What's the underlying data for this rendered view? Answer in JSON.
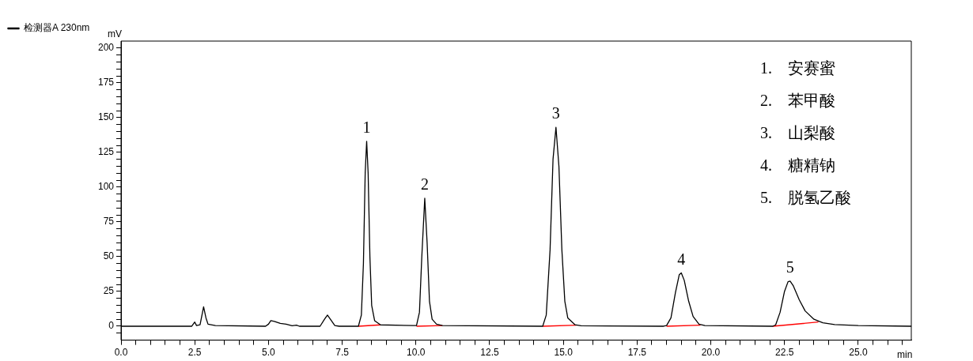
{
  "chart_data": {
    "type": "line",
    "xlabel": "min",
    "ylabel": "mV",
    "legend": "top left",
    "grid": false,
    "marker": "none",
    "line_style": "solid",
    "xlim": [
      0,
      26.8
    ],
    "ylim": [
      -10,
      205
    ],
    "xticks": [
      {
        "value": 0,
        "label": "0.0"
      },
      {
        "value": 0.5,
        "label": null
      },
      {
        "value": 1,
        "label": null
      },
      {
        "value": 1.5,
        "label": null
      },
      {
        "value": 2,
        "label": null
      },
      {
        "value": 2.5,
        "label": "2.5"
      },
      {
        "value": 3,
        "label": null
      },
      {
        "value": 3.5,
        "label": null
      },
      {
        "value": 4,
        "label": null
      },
      {
        "value": 4.5,
        "label": null
      },
      {
        "value": 5,
        "label": "5.0"
      },
      {
        "value": 5.5,
        "label": null
      },
      {
        "value": 6,
        "label": null
      },
      {
        "value": 6.5,
        "label": null
      },
      {
        "value": 7,
        "label": null
      },
      {
        "value": 7.5,
        "label": "7.5"
      },
      {
        "value": 8,
        "label": null
      },
      {
        "value": 8.5,
        "label": null
      },
      {
        "value": 9,
        "label": null
      },
      {
        "value": 9.5,
        "label": null
      },
      {
        "value": 10,
        "label": "10.0"
      },
      {
        "value": 10.5,
        "label": null
      },
      {
        "value": 11,
        "label": null
      },
      {
        "value": 11.5,
        "label": null
      },
      {
        "value": 12,
        "label": null
      },
      {
        "value": 12.5,
        "label": "12.5"
      },
      {
        "value": 13,
        "label": null
      },
      {
        "value": 13.5,
        "label": null
      },
      {
        "value": 14,
        "label": null
      },
      {
        "value": 14.5,
        "label": null
      },
      {
        "value": 15,
        "label": "15.0"
      },
      {
        "value": 15.5,
        "label": null
      },
      {
        "value": 16,
        "label": null
      },
      {
        "value": 16.5,
        "label": null
      },
      {
        "value": 17,
        "label": null
      },
      {
        "value": 17.5,
        "label": "17.5"
      },
      {
        "value": 18,
        "label": null
      },
      {
        "value": 18.5,
        "label": null
      },
      {
        "value": 19,
        "label": null
      },
      {
        "value": 19.5,
        "label": null
      },
      {
        "value": 20,
        "label": "20.0"
      },
      {
        "value": 20.5,
        "label": null
      },
      {
        "value": 21,
        "label": null
      },
      {
        "value": 21.5,
        "label": null
      },
      {
        "value": 22,
        "label": null
      },
      {
        "value": 22.5,
        "label": "22.5"
      },
      {
        "value": 23,
        "label": null
      },
      {
        "value": 23.5,
        "label": null
      },
      {
        "value": 24,
        "label": null
      },
      {
        "value": 24.5,
        "label": null
      },
      {
        "value": 25,
        "label": "25.0"
      },
      {
        "value": 25.5,
        "label": null
      },
      {
        "value": 26,
        "label": null
      },
      {
        "value": 26.5,
        "label": null
      }
    ],
    "yticks": [
      {
        "value": -5,
        "label": null
      },
      0,
      {
        "value": 5,
        "label": null
      },
      {
        "value": 10,
        "label": null
      },
      {
        "value": 15,
        "label": null
      },
      {
        "value": 20,
        "label": null
      },
      25,
      {
        "value": 30,
        "label": null
      },
      {
        "value": 35,
        "label": null
      },
      {
        "value": 40,
        "label": null
      },
      {
        "value": 45,
        "label": null
      },
      50,
      {
        "value": 55,
        "label": null
      },
      {
        "value": 60,
        "label": null
      },
      {
        "value": 65,
        "label": null
      },
      {
        "value": 70,
        "label": null
      },
      75,
      {
        "value": 80,
        "label": null
      },
      {
        "value": 85,
        "label": null
      },
      {
        "value": 90,
        "label": null
      },
      {
        "value": 95,
        "label": null
      },
      100,
      {
        "value": 105,
        "label": null
      },
      {
        "value": 110,
        "label": null
      },
      {
        "value": 115,
        "label": null
      },
      {
        "value": 120,
        "label": null
      },
      125,
      {
        "value": 130,
        "label": null
      },
      {
        "value": 135,
        "label": null
      },
      {
        "value": 140,
        "label": null
      },
      {
        "value": 145,
        "label": null
      },
      150,
      {
        "value": 155,
        "label": null
      },
      {
        "value": 160,
        "label": null
      },
      {
        "value": 165,
        "label": null
      },
      {
        "value": 170,
        "label": null
      },
      175,
      {
        "value": 180,
        "label": null
      },
      {
        "value": 185,
        "label": null
      },
      {
        "value": 190,
        "label": null
      },
      {
        "value": 195,
        "label": null
      },
      200
    ],
    "series": [
      {
        "name": "检测器A 230nm",
        "color": "#000000",
        "x": [
          0,
          2.4,
          2.5,
          2.56,
          2.68,
          2.8,
          2.88,
          2.95,
          3.2,
          4.9,
          5.0,
          5.08,
          5.2,
          5.4,
          5.6,
          5.8,
          5.95,
          6.05,
          6.75,
          6.9,
          7.0,
          7.1,
          7.25,
          7.4,
          8.05,
          8.15,
          8.22,
          8.28,
          8.33,
          8.38,
          8.44,
          8.5,
          8.6,
          8.8,
          9.9,
          10.02,
          10.12,
          10.2,
          10.3,
          10.38,
          10.46,
          10.55,
          10.7,
          10.9,
          14.3,
          14.42,
          14.55,
          14.65,
          14.75,
          14.85,
          14.95,
          15.05,
          15.15,
          15.4,
          15.6,
          18.4,
          18.5,
          18.65,
          18.8,
          18.93,
          19.0,
          19.1,
          19.25,
          19.4,
          19.6,
          19.8,
          22.1,
          22.2,
          22.35,
          22.5,
          22.62,
          22.69,
          22.8,
          23.0,
          23.2,
          23.5,
          23.8,
          24.2,
          25,
          26.8
        ],
        "values": [
          0,
          0,
          3,
          0.5,
          1,
          14,
          6,
          1.5,
          0.5,
          0,
          1.5,
          4,
          3.5,
          2,
          1.5,
          0.3,
          0.8,
          0,
          0,
          5,
          8,
          5,
          0.5,
          0,
          0,
          8,
          45,
          110,
          133,
          110,
          50,
          15,
          4,
          1,
          0.5,
          0.5,
          10,
          50,
          92,
          60,
          18,
          5,
          1.5,
          0.5,
          0,
          8,
          55,
          120,
          143,
          115,
          55,
          18,
          6,
          1,
          0.3,
          0,
          0.5,
          6,
          24,
          37,
          38.3,
          33,
          18,
          7,
          1.5,
          0.5,
          0,
          1,
          10,
          25,
          32,
          32.4,
          29,
          19,
          11,
          5,
          2.5,
          1.2,
          0.5,
          0
        ]
      },
      {
        "color": "#ff0000",
        "x": [
          8.05,
          8.8,
          9.4,
          10.02,
          10.9,
          12.6,
          14.3,
          15.45,
          17,
          18.5,
          19.65,
          21,
          22.1,
          23.65
        ],
        "values": [
          0,
          1,
          null,
          0,
          0.5,
          null,
          0,
          0.8,
          null,
          0,
          0.8,
          null,
          0,
          3
        ]
      }
    ],
    "annotations": [
      {
        "text": "1",
        "x": 8.33,
        "y": 133
      },
      {
        "text": "2",
        "x": 10.3,
        "y": 92
      },
      {
        "text": "3",
        "x": 14.75,
        "y": 143
      },
      {
        "text": "4",
        "x": 19.0,
        "y": 38.3
      },
      {
        "text": "5",
        "x": 22.69,
        "y": 32.4
      },
      "1.　安赛蜜",
      "2.　苯甲酸",
      "3.　山梨酸",
      "4.　糖精钠",
      "5.　脱氢乙酸"
    ]
  }
}
